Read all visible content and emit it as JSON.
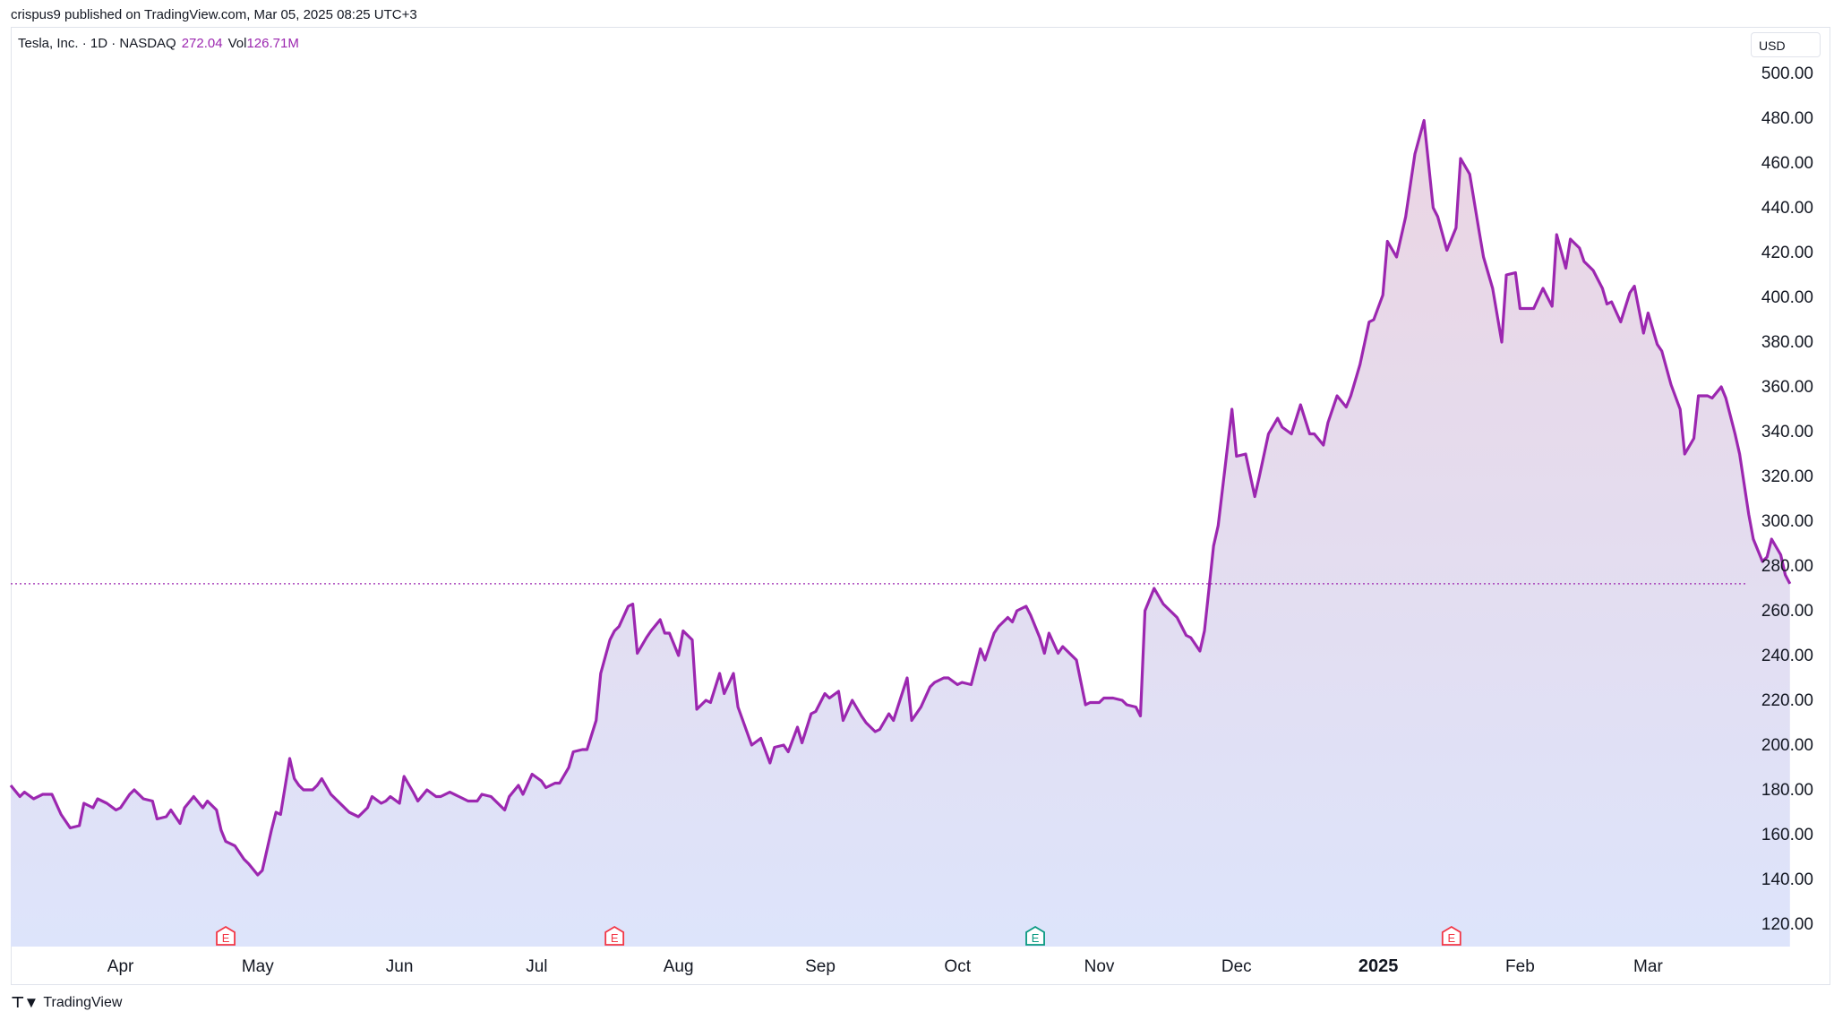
{
  "header": {
    "published": "crispus9 published on TradingView.com, Mar 05, 2025 08:25 UTC+3"
  },
  "legend": {
    "symbol": "Tesla, Inc. · 1D · NASDAQ",
    "price": "272.04",
    "vol_label": "Vol",
    "vol_value": "126.71M"
  },
  "currency": "USD",
  "footer": {
    "brand": "TradingView",
    "logo_icon": "tradingview-logo-icon"
  },
  "colors": {
    "line": "#9c27b0",
    "fill_top": "#ebd5e3",
    "fill_bottom": "#dde4fb",
    "earnings_red": "#f23645",
    "earnings_green": "#089981",
    "price_line": "#9c27b0"
  },
  "chart_data": {
    "type": "area",
    "title": "",
    "xlabel": "",
    "ylabel": "",
    "ylim": [
      110,
      510
    ],
    "y_ticks": [
      "120.00",
      "140.00",
      "160.00",
      "180.00",
      "200.00",
      "220.00",
      "240.00",
      "260.00",
      "280.00",
      "300.00",
      "320.00",
      "340.00",
      "360.00",
      "380.00",
      "400.00",
      "420.00",
      "440.00",
      "460.00",
      "480.00",
      "500.00"
    ],
    "x_ticks": [
      {
        "label": "Apr",
        "day": 12,
        "bold": false
      },
      {
        "label": "May",
        "day": 42,
        "bold": false
      },
      {
        "label": "Jun",
        "day": 73,
        "bold": false
      },
      {
        "label": "Jul",
        "day": 103,
        "bold": false
      },
      {
        "label": "Aug",
        "day": 134,
        "bold": false
      },
      {
        "label": "Sep",
        "day": 165,
        "bold": false
      },
      {
        "label": "Oct",
        "day": 195,
        "bold": false
      },
      {
        "label": "Nov",
        "day": 226,
        "bold": false
      },
      {
        "label": "Dec",
        "day": 256,
        "bold": false
      },
      {
        "label": "2025",
        "day": 287,
        "bold": true
      },
      {
        "label": "Feb",
        "day": 318,
        "bold": false
      },
      {
        "label": "Mar",
        "day": 346,
        "bold": false
      }
    ],
    "x_range_days": [
      -12,
      356
    ],
    "last_price": 272.04,
    "earnings_markers": [
      {
        "label": "E",
        "day": 35,
        "color": "red"
      },
      {
        "label": "E",
        "day": 120,
        "color": "red"
      },
      {
        "label": "E",
        "day": 212,
        "color": "green"
      },
      {
        "label": "E",
        "day": 303,
        "color": "red"
      }
    ],
    "series": [
      {
        "values": [
          [
            -12,
            182
          ],
          [
            -10,
            177
          ],
          [
            -9,
            179
          ],
          [
            -7,
            176
          ],
          [
            -5,
            178
          ],
          [
            -3,
            178
          ],
          [
            -1,
            169
          ],
          [
            1,
            163
          ],
          [
            3,
            164
          ],
          [
            4,
            174
          ],
          [
            6,
            172
          ],
          [
            7,
            176
          ],
          [
            9,
            174
          ],
          [
            11,
            171
          ],
          [
            12,
            172
          ],
          [
            14,
            178
          ],
          [
            15,
            180
          ],
          [
            17,
            176
          ],
          [
            19,
            175
          ],
          [
            20,
            167
          ],
          [
            22,
            168
          ],
          [
            23,
            171
          ],
          [
            25,
            165
          ],
          [
            26,
            172
          ],
          [
            28,
            177
          ],
          [
            30,
            172
          ],
          [
            31,
            175
          ],
          [
            33,
            171
          ],
          [
            34,
            162
          ],
          [
            35,
            157
          ],
          [
            37,
            155
          ],
          [
            39,
            149
          ],
          [
            40,
            147
          ],
          [
            42,
            142
          ],
          [
            43,
            144
          ],
          [
            45,
            162
          ],
          [
            46,
            170
          ],
          [
            47,
            169
          ],
          [
            49,
            194
          ],
          [
            50,
            185
          ],
          [
            51,
            182
          ],
          [
            52,
            180
          ],
          [
            54,
            180
          ],
          [
            55,
            182
          ],
          [
            56,
            185
          ],
          [
            58,
            178
          ],
          [
            59,
            176
          ],
          [
            61,
            172
          ],
          [
            62,
            170
          ],
          [
            64,
            168
          ],
          [
            66,
            172
          ],
          [
            67,
            177
          ],
          [
            69,
            174
          ],
          [
            70,
            175
          ],
          [
            71,
            177
          ],
          [
            73,
            174
          ],
          [
            74,
            186
          ],
          [
            76,
            179
          ],
          [
            77,
            175
          ],
          [
            79,
            180
          ],
          [
            81,
            177
          ],
          [
            82,
            177
          ],
          [
            84,
            179
          ],
          [
            86,
            177
          ],
          [
            88,
            175
          ],
          [
            90,
            175
          ],
          [
            91,
            178
          ],
          [
            93,
            177
          ],
          [
            95,
            173
          ],
          [
            96,
            171
          ],
          [
            97,
            177
          ],
          [
            99,
            182
          ],
          [
            100,
            178
          ],
          [
            102,
            187
          ],
          [
            104,
            184
          ],
          [
            105,
            181
          ],
          [
            107,
            183
          ],
          [
            108,
            183
          ],
          [
            110,
            190
          ],
          [
            111,
            197
          ],
          [
            113,
            198
          ],
          [
            114,
            198
          ],
          [
            116,
            211
          ],
          [
            117,
            232
          ],
          [
            119,
            247
          ],
          [
            120,
            251
          ],
          [
            121,
            253
          ],
          [
            123,
            262
          ],
          [
            124,
            263
          ],
          [
            125,
            241
          ],
          [
            127,
            248
          ],
          [
            128,
            251
          ],
          [
            130,
            256
          ],
          [
            131,
            250
          ],
          [
            132,
            250
          ],
          [
            134,
            240
          ],
          [
            135,
            251
          ],
          [
            137,
            247
          ],
          [
            138,
            216
          ],
          [
            140,
            220
          ],
          [
            141,
            219
          ],
          [
            143,
            232
          ],
          [
            144,
            223
          ],
          [
            146,
            232
          ],
          [
            147,
            217
          ],
          [
            150,
            200
          ],
          [
            152,
            203
          ],
          [
            154,
            192
          ],
          [
            155,
            199
          ],
          [
            157,
            200
          ],
          [
            158,
            197
          ],
          [
            160,
            208
          ],
          [
            161,
            201
          ],
          [
            163,
            214
          ],
          [
            164,
            215
          ],
          [
            166,
            223
          ],
          [
            167,
            221
          ],
          [
            169,
            224
          ],
          [
            170,
            211
          ],
          [
            172,
            220
          ],
          [
            174,
            213
          ],
          [
            175,
            210
          ],
          [
            177,
            206
          ],
          [
            178,
            207
          ],
          [
            180,
            214
          ],
          [
            181,
            211
          ],
          [
            184,
            230
          ],
          [
            185,
            211
          ],
          [
            187,
            217
          ],
          [
            189,
            226
          ],
          [
            190,
            228
          ],
          [
            192,
            230
          ],
          [
            193,
            230
          ],
          [
            195,
            227
          ],
          [
            196,
            228
          ],
          [
            198,
            227
          ],
          [
            200,
            243
          ],
          [
            201,
            238
          ],
          [
            203,
            250
          ],
          [
            204,
            253
          ],
          [
            206,
            257
          ],
          [
            207,
            255
          ],
          [
            208,
            260
          ],
          [
            210,
            262
          ],
          [
            211,
            258
          ],
          [
            213,
            248
          ],
          [
            214,
            241
          ],
          [
            215,
            250
          ],
          [
            217,
            241
          ],
          [
            218,
            244
          ],
          [
            220,
            240
          ],
          [
            221,
            238
          ],
          [
            223,
            218
          ],
          [
            224,
            219
          ],
          [
            226,
            219
          ],
          [
            227,
            221
          ],
          [
            229,
            221
          ],
          [
            231,
            220
          ],
          [
            232,
            218
          ],
          [
            234,
            217
          ],
          [
            235,
            213
          ],
          [
            236,
            260
          ],
          [
            238,
            270
          ],
          [
            240,
            263
          ],
          [
            242,
            259
          ],
          [
            243,
            257
          ],
          [
            245,
            249
          ],
          [
            246,
            248
          ],
          [
            248,
            242
          ],
          [
            249,
            251
          ],
          [
            251,
            289
          ],
          [
            252,
            298
          ],
          [
            255,
            350
          ],
          [
            256,
            329
          ],
          [
            258,
            330
          ],
          [
            260,
            311
          ],
          [
            261,
            320
          ],
          [
            263,
            339
          ],
          [
            265,
            346
          ],
          [
            266,
            342
          ],
          [
            268,
            339
          ],
          [
            270,
            352
          ],
          [
            272,
            339
          ],
          [
            273,
            339
          ],
          [
            275,
            334
          ],
          [
            276,
            344
          ],
          [
            278,
            356
          ],
          [
            280,
            351
          ],
          [
            281,
            356
          ],
          [
            283,
            370
          ],
          [
            285,
            389
          ],
          [
            286,
            390
          ],
          [
            288,
            401
          ],
          [
            289,
            425
          ],
          [
            291,
            418
          ],
          [
            293,
            436
          ],
          [
            295,
            464
          ],
          [
            297,
            479
          ],
          [
            299,
            440
          ],
          [
            300,
            436
          ],
          [
            302,
            421
          ],
          [
            304,
            431
          ],
          [
            305,
            462
          ],
          [
            307,
            455
          ],
          [
            309,
            430
          ],
          [
            310,
            418
          ],
          [
            312,
            404
          ],
          [
            314,
            380
          ],
          [
            315,
            410
          ],
          [
            317,
            411
          ],
          [
            318,
            395
          ],
          [
            320,
            395
          ],
          [
            321,
            395
          ],
          [
            323,
            404
          ],
          [
            325,
            396
          ],
          [
            326,
            428
          ],
          [
            328,
            413
          ],
          [
            329,
            426
          ],
          [
            331,
            422
          ],
          [
            332,
            416
          ],
          [
            334,
            412
          ],
          [
            336,
            404
          ],
          [
            337,
            397
          ],
          [
            338,
            398
          ],
          [
            340,
            389
          ],
          [
            342,
            402
          ],
          [
            343,
            405
          ],
          [
            345,
            384
          ],
          [
            346,
            393
          ],
          [
            348,
            379
          ],
          [
            349,
            376
          ],
          [
            351,
            361
          ],
          [
            353,
            350
          ],
          [
            354,
            330
          ],
          [
            356,
            337
          ],
          [
            357,
            356
          ],
          [
            359,
            356
          ],
          [
            360,
            355
          ],
          [
            362,
            360
          ],
          [
            363,
            355
          ],
          [
            365,
            339
          ],
          [
            366,
            330
          ],
          [
            368,
            303
          ],
          [
            369,
            292
          ],
          [
            371,
            282
          ],
          [
            372,
            284
          ],
          [
            373,
            292
          ],
          [
            375,
            285
          ],
          [
            376,
            276
          ],
          [
            377,
            272.04
          ]
        ]
      }
    ]
  }
}
